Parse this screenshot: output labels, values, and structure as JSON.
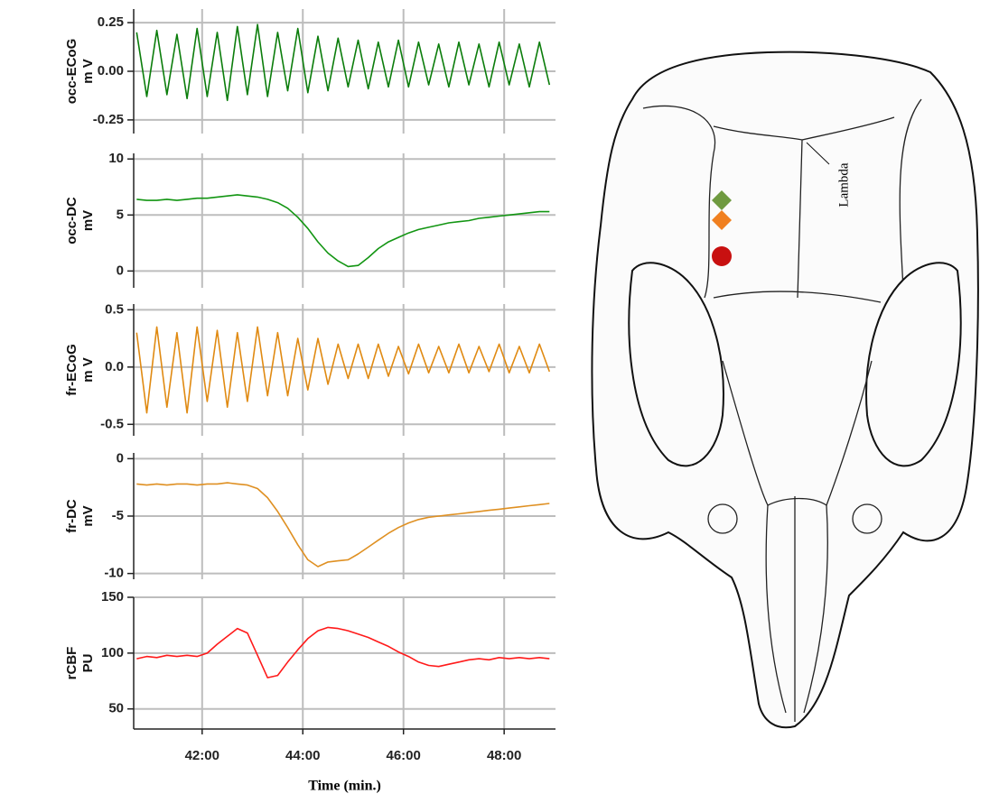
{
  "chart_data": [
    {
      "type": "line",
      "ylabel": [
        "occ-ECoG",
        "m V"
      ],
      "color": "#0b7d0b",
      "xlim": [
        40.64,
        49.02
      ],
      "xticks": [
        42,
        44,
        46,
        48
      ],
      "ylim": [
        -0.32,
        0.32
      ],
      "yticks": [
        -0.25,
        {
          "value": 0,
          "label": "0.00"
        },
        0.25
      ],
      "x": [
        40.7,
        40.9,
        41.1,
        41.3,
        41.5,
        41.7,
        41.9,
        42.1,
        42.3,
        42.5,
        42.7,
        42.9,
        43.1,
        43.3,
        43.5,
        43.7,
        43.9,
        44.1,
        44.3,
        44.5,
        44.7,
        44.9,
        45.1,
        45.3,
        45.5,
        45.7,
        45.9,
        46.1,
        46.3,
        46.5,
        46.7,
        46.9,
        47.1,
        47.3,
        47.5,
        47.7,
        47.9,
        48.1,
        48.3,
        48.5,
        48.7,
        48.9
      ],
      "values": [
        0.2,
        -0.13,
        0.21,
        -0.12,
        0.19,
        -0.14,
        0.22,
        -0.13,
        0.2,
        -0.15,
        0.23,
        -0.12,
        0.24,
        -0.13,
        0.2,
        -0.1,
        0.22,
        -0.11,
        0.18,
        -0.1,
        0.17,
        -0.08,
        0.16,
        -0.09,
        0.15,
        -0.08,
        0.16,
        -0.08,
        0.15,
        -0.07,
        0.14,
        -0.08,
        0.15,
        -0.07,
        0.14,
        -0.08,
        0.15,
        -0.07,
        0.14,
        -0.08,
        0.15,
        -0.07
      ]
    },
    {
      "type": "line",
      "ylabel": [
        "occ-DC",
        "mV"
      ],
      "color": "#129512",
      "xlim": [
        40.64,
        49.02
      ],
      "xticks": [
        42,
        44,
        46,
        48
      ],
      "ylim": [
        -1.5,
        10.5
      ],
      "yticks": [
        0,
        5,
        10
      ],
      "x": [
        40.7,
        40.9,
        41.1,
        41.3,
        41.5,
        41.7,
        41.9,
        42.1,
        42.3,
        42.5,
        42.7,
        42.9,
        43.1,
        43.3,
        43.5,
        43.7,
        43.9,
        44.1,
        44.3,
        44.5,
        44.7,
        44.9,
        45.1,
        45.3,
        45.5,
        45.7,
        45.9,
        46.1,
        46.3,
        46.5,
        46.7,
        46.9,
        47.1,
        47.3,
        47.5,
        47.7,
        47.9,
        48.1,
        48.3,
        48.5,
        48.7,
        48.9
      ],
      "values": [
        6.4,
        6.3,
        6.3,
        6.4,
        6.3,
        6.4,
        6.5,
        6.5,
        6.6,
        6.7,
        6.8,
        6.7,
        6.6,
        6.4,
        6.1,
        5.6,
        4.8,
        3.8,
        2.6,
        1.6,
        0.9,
        0.4,
        0.5,
        1.2,
        2.0,
        2.6,
        3.0,
        3.4,
        3.7,
        3.9,
        4.1,
        4.3,
        4.4,
        4.5,
        4.7,
        4.8,
        4.9,
        5.0,
        5.1,
        5.2,
        5.3,
        5.3
      ]
    },
    {
      "type": "line",
      "ylabel": [
        "fr-ECoG",
        "m V"
      ],
      "color": "#e08a12",
      "xlim": [
        40.64,
        49.02
      ],
      "xticks": [
        42,
        44,
        46,
        48
      ],
      "ylim": [
        -0.6,
        0.55
      ],
      "yticks": [
        -0.5,
        {
          "value": 0,
          "label": "0.0"
        },
        0.5
      ],
      "x": [
        40.7,
        40.9,
        41.1,
        41.3,
        41.5,
        41.7,
        41.9,
        42.1,
        42.3,
        42.5,
        42.7,
        42.9,
        43.1,
        43.3,
        43.5,
        43.7,
        43.9,
        44.1,
        44.3,
        44.5,
        44.7,
        44.9,
        45.1,
        45.3,
        45.5,
        45.7,
        45.9,
        46.1,
        46.3,
        46.5,
        46.7,
        46.9,
        47.1,
        47.3,
        47.5,
        47.7,
        47.9,
        48.1,
        48.3,
        48.5,
        48.7,
        48.9
      ],
      "values": [
        0.3,
        -0.4,
        0.35,
        -0.35,
        0.3,
        -0.4,
        0.35,
        -0.3,
        0.32,
        -0.35,
        0.3,
        -0.3,
        0.35,
        -0.25,
        0.3,
        -0.25,
        0.25,
        -0.2,
        0.25,
        -0.15,
        0.2,
        -0.1,
        0.2,
        -0.1,
        0.2,
        -0.08,
        0.18,
        -0.06,
        0.2,
        -0.05,
        0.18,
        -0.05,
        0.2,
        -0.05,
        0.18,
        -0.04,
        0.2,
        -0.05,
        0.18,
        -0.05,
        0.2,
        -0.04
      ]
    },
    {
      "type": "line",
      "ylabel": [
        "fr-DC",
        "mV"
      ],
      "color": "#df9022",
      "xlim": [
        40.64,
        49.02
      ],
      "xticks": [
        42,
        44,
        46,
        48
      ],
      "ylim": [
        -10.5,
        0.5
      ],
      "yticks": [
        -10,
        -5,
        0
      ],
      "x": [
        40.7,
        40.9,
        41.1,
        41.3,
        41.5,
        41.7,
        41.9,
        42.1,
        42.3,
        42.5,
        42.7,
        42.9,
        43.1,
        43.3,
        43.5,
        43.7,
        43.9,
        44.1,
        44.3,
        44.5,
        44.7,
        44.9,
        45.1,
        45.3,
        45.5,
        45.7,
        45.9,
        46.1,
        46.3,
        46.5,
        46.7,
        46.9,
        47.1,
        47.3,
        47.5,
        47.7,
        47.9,
        48.1,
        48.3,
        48.5,
        48.7,
        48.9
      ],
      "values": [
        -2.2,
        -2.3,
        -2.2,
        -2.3,
        -2.2,
        -2.2,
        -2.3,
        -2.2,
        -2.2,
        -2.1,
        -2.2,
        -2.3,
        -2.6,
        -3.4,
        -4.6,
        -6.0,
        -7.5,
        -8.8,
        -9.4,
        -9.0,
        -8.9,
        -8.8,
        -8.3,
        -7.7,
        -7.1,
        -6.5,
        -6.0,
        -5.6,
        -5.3,
        -5.1,
        -5.0,
        -4.9,
        -4.8,
        -4.7,
        -4.6,
        -4.5,
        -4.4,
        -4.3,
        -4.2,
        -4.1,
        -4.0,
        -3.9
      ]
    },
    {
      "type": "line",
      "ylabel": [
        "rCBF",
        "PU"
      ],
      "color": "#ff1a1a",
      "xlabel": "Time (min.)",
      "xlim": [
        40.64,
        49.02
      ],
      "xticks": [
        {
          "value": 42,
          "label": "42:00"
        },
        {
          "value": 44,
          "label": "44:00"
        },
        {
          "value": 46,
          "label": "46:00"
        },
        {
          "value": 48,
          "label": "48:00"
        }
      ],
      "ylim": [
        32,
        150
      ],
      "yticks": [
        50,
        100,
        150
      ],
      "x": [
        40.7,
        40.9,
        41.1,
        41.3,
        41.5,
        41.7,
        41.9,
        42.1,
        42.3,
        42.5,
        42.7,
        42.9,
        43.1,
        43.3,
        43.5,
        43.7,
        43.9,
        44.1,
        44.3,
        44.5,
        44.7,
        44.9,
        45.1,
        45.3,
        45.5,
        45.7,
        45.9,
        46.1,
        46.3,
        46.5,
        46.7,
        46.9,
        47.1,
        47.3,
        47.5,
        47.7,
        47.9,
        48.1,
        48.3,
        48.5,
        48.7,
        48.9
      ],
      "values": [
        95,
        97,
        96,
        98,
        97,
        98,
        97,
        100,
        108,
        115,
        122,
        118,
        98,
        78,
        80,
        92,
        103,
        113,
        120,
        123,
        122,
        120,
        117,
        114,
        110,
        106,
        101,
        97,
        92,
        89,
        88,
        90,
        92,
        94,
        95,
        94,
        96,
        95,
        96,
        95,
        96,
        95
      ]
    }
  ],
  "skull_annotation": "Lambda"
}
